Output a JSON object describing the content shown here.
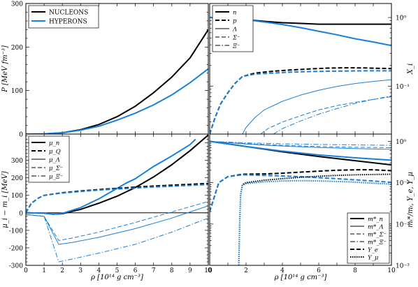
{
  "colors": {
    "black": "#000000",
    "blue": "#1a7fd8"
  },
  "chart_data": [
    {
      "panel": "top-left",
      "type": "line",
      "ylabel": "P [MeV fm⁻³]",
      "xlim": [
        0,
        10
      ],
      "ylim": [
        0,
        300
      ],
      "yticks": [
        0,
        100,
        200,
        300
      ],
      "legend_position": "top-left",
      "series": [
        {
          "name": "NUCLEONS",
          "color": "#000000",
          "style": "solid",
          "width": 2,
          "x": [
            0,
            1,
            2,
            3,
            4,
            5,
            6,
            7,
            8,
            9,
            10
          ],
          "y": [
            0,
            0.5,
            3,
            10,
            22,
            40,
            64,
            95,
            131,
            175,
            240
          ]
        },
        {
          "name": "HYPERONS",
          "color": "#1a7fd8",
          "style": "solid",
          "width": 2,
          "x": [
            0,
            1,
            2,
            3,
            4,
            5,
            6,
            7,
            8,
            9,
            10
          ],
          "y": [
            0,
            0.5,
            3,
            9,
            18,
            32,
            48,
            67,
            90,
            118,
            150
          ]
        }
      ]
    },
    {
      "panel": "top-right",
      "type": "line",
      "ylabel": "X_i",
      "yscale": "log",
      "xlim": [
        0,
        10
      ],
      "ylim": [
        0.02,
        1.6
      ],
      "yticks": [
        1,
        0.1
      ],
      "ytick_labels": [
        "10⁰",
        "10⁻¹"
      ],
      "legend_position": "top-left",
      "legend": [
        {
          "label": "n",
          "style": "solid",
          "width": 2
        },
        {
          "label": "p",
          "style": "dashed",
          "width": 2
        },
        {
          "label": "Λ",
          "style": "solid",
          "width": 1
        },
        {
          "label": "Σ⁻",
          "style": "dashed",
          "width": 1
        },
        {
          "label": "Ξ⁻",
          "style": "dashdot",
          "width": 1
        }
      ],
      "series": [
        {
          "color": "#000000",
          "style": "solid",
          "width": 2,
          "x": [
            0,
            1,
            2,
            3,
            4,
            5,
            6,
            7,
            8,
            9,
            10
          ],
          "y": [
            1.0,
            0.98,
            0.93,
            0.88,
            0.84,
            0.82,
            0.8,
            0.8,
            0.8,
            0.8,
            0.8
          ]
        },
        {
          "color": "#1a7fd8",
          "style": "solid",
          "width": 2,
          "x": [
            0,
            1,
            2,
            3,
            4,
            5,
            6,
            7,
            8,
            9,
            10
          ],
          "y": [
            1.0,
            0.98,
            0.93,
            0.86,
            0.79,
            0.71,
            0.63,
            0.56,
            0.49,
            0.44,
            0.39
          ]
        },
        {
          "color": "#000000",
          "style": "dashed",
          "width": 2,
          "x": [
            0,
            0.3,
            0.6,
            1.0,
            1.4,
            1.8,
            2.5,
            3.5,
            4.5,
            5.5,
            6.5,
            7.5,
            8.5,
            10
          ],
          "y": [
            0.02,
            0.035,
            0.055,
            0.08,
            0.11,
            0.138,
            0.155,
            0.165,
            0.172,
            0.178,
            0.183,
            0.185,
            0.184,
            0.18
          ]
        },
        {
          "color": "#1a7fd8",
          "style": "dashed",
          "width": 2,
          "x": [
            0,
            0.3,
            0.6,
            1.0,
            1.4,
            1.8,
            2.5,
            3.5,
            4.5,
            5.5,
            6.5,
            7.5,
            8.5,
            10
          ],
          "y": [
            0.02,
            0.035,
            0.055,
            0.08,
            0.11,
            0.138,
            0.15,
            0.155,
            0.16,
            0.163,
            0.165,
            0.166,
            0.167,
            0.167
          ]
        },
        {
          "color": "#1a7fd8",
          "style": "solid",
          "width": 1,
          "x": [
            1.8,
            2.0,
            2.5,
            3,
            4,
            5,
            6,
            7,
            8,
            9,
            10
          ],
          "y": [
            0.02,
            0.025,
            0.035,
            0.045,
            0.06,
            0.074,
            0.087,
            0.099,
            0.109,
            0.117,
            0.124
          ]
        },
        {
          "color": "#1a7fd8",
          "style": "dashed",
          "width": 1,
          "x": [
            2.8,
            3.2,
            4,
            5,
            6,
            7,
            8,
            9,
            10
          ],
          "y": [
            0.02,
            0.024,
            0.03,
            0.037,
            0.045,
            0.052,
            0.058,
            0.064,
            0.07
          ]
        },
        {
          "color": "#1a7fd8",
          "style": "dashdot",
          "width": 1,
          "x": [
            3.5,
            4,
            5,
            6,
            7,
            8,
            9,
            10
          ],
          "y": [
            0.02,
            0.024,
            0.031,
            0.039,
            0.047,
            0.056,
            0.064,
            0.072
          ]
        }
      ]
    },
    {
      "panel": "bottom-left",
      "type": "line",
      "xlabel": "ρ [10¹⁴ g cm⁻³]",
      "ylabel": "μ_i − m_i [MeV]",
      "xlim": [
        0,
        10
      ],
      "ylim": [
        -300,
        450
      ],
      "yticks": [
        -300,
        -200,
        -100,
        0,
        100,
        200,
        300,
        400
      ],
      "xticks": [
        0,
        1,
        2,
        3,
        4,
        5,
        6,
        7,
        8,
        9,
        10
      ],
      "legend_position": "top-left",
      "legend": [
        {
          "label": "μ_n",
          "style": "solid",
          "width": 2
        },
        {
          "label": "μ_Q",
          "style": "dashed",
          "width": 2
        },
        {
          "label": "μ_Λ",
          "style": "solid",
          "width": 1
        },
        {
          "label": "μ_Σ⁻",
          "style": "dashed",
          "width": 1
        },
        {
          "label": "μ_Ξ⁻",
          "style": "dashdot",
          "width": 1
        }
      ],
      "series": [
        {
          "color": "#000000",
          "style": "solid",
          "width": 1,
          "x": [
            0,
            10
          ],
          "y": [
            0,
            0
          ]
        },
        {
          "color": "#000000",
          "style": "solid",
          "width": 2,
          "x": [
            0,
            1,
            1.5,
            2,
            3,
            4,
            5,
            6,
            7,
            8,
            9,
            10
          ],
          "y": [
            0,
            -2,
            -8,
            -5,
            20,
            55,
            95,
            145,
            205,
            275,
            355,
            445
          ]
        },
        {
          "color": "#1a7fd8",
          "style": "solid",
          "width": 2,
          "x": [
            0,
            1,
            1.5,
            2,
            3,
            4,
            5,
            5.5,
            6,
            6.5,
            7,
            8,
            9,
            9.3
          ],
          "y": [
            0,
            -2,
            -8,
            -3,
            30,
            80,
            140,
            170,
            195,
            230,
            265,
            325,
            390,
            420
          ]
        },
        {
          "color": "#000000",
          "style": "dashed",
          "width": 2,
          "x": [
            0,
            0.3,
            0.7,
            1,
            2,
            3,
            4,
            5,
            6,
            7,
            8,
            9,
            10
          ],
          "y": [
            0,
            55,
            85,
            100,
            115,
            125,
            133,
            140,
            147,
            153,
            158,
            163,
            168
          ]
        },
        {
          "color": "#1a7fd8",
          "style": "dashed",
          "width": 2,
          "x": [
            0,
            0.3,
            0.7,
            1,
            2,
            3,
            4,
            5,
            6,
            7,
            8,
            9,
            10
          ],
          "y": [
            0,
            55,
            85,
            100,
            113,
            122,
            130,
            136,
            142,
            148,
            152,
            157,
            162
          ]
        },
        {
          "color": "#1a7fd8",
          "style": "solid",
          "width": 1,
          "x": [
            0,
            1,
            1.8,
            2.5,
            4,
            6,
            8,
            10
          ],
          "y": [
            -10,
            -20,
            -180,
            -170,
            -140,
            -90,
            -30,
            40
          ]
        },
        {
          "color": "#1a7fd8",
          "style": "dashed",
          "width": 1,
          "x": [
            0,
            1,
            1.8,
            2.5,
            4,
            6,
            8,
            10
          ],
          "y": [
            -10,
            -20,
            -158,
            -145,
            -110,
            -55,
            5,
            65
          ]
        },
        {
          "color": "#1a7fd8",
          "style": "dashdot",
          "width": 1,
          "x": [
            0,
            1,
            1.8,
            2.5,
            4,
            6,
            8,
            10
          ],
          "y": [
            -10,
            -20,
            -280,
            -265,
            -230,
            -180,
            -110,
            -30
          ]
        }
      ]
    },
    {
      "panel": "bottom-right",
      "type": "line",
      "xlabel": "ρ [10¹⁴ g cm⁻³]",
      "ylabel": "mᵢ*/mᵢ, Y_e, Y_μ",
      "yscale": "log",
      "xlim": [
        0,
        10
      ],
      "ylim": [
        0.001,
        1.5
      ],
      "yticks": [
        1,
        0.1,
        0.01,
        0.001
      ],
      "ytick_labels": [
        "10⁰",
        "10⁻¹",
        "10⁻²",
        "10⁻³"
      ],
      "xticks": [
        0,
        2,
        4,
        6,
        8,
        10
      ],
      "legend_position": "bottom-right",
      "legend": [
        {
          "label": "m*_n",
          "style": "solid",
          "width": 2
        },
        {
          "label": "m*_Λ",
          "style": "solid",
          "width": 1
        },
        {
          "label": "m*_Σ⁻",
          "style": "dashed",
          "width": 1
        },
        {
          "label": "m*_Ξ⁻",
          "style": "dashdot",
          "width": 1
        },
        {
          "label": "Y_e",
          "style": "dashed",
          "width": 2
        },
        {
          "label": "Y_μ",
          "style": "dotted",
          "width": 2
        }
      ],
      "series": [
        {
          "color": "#000000",
          "style": "solid",
          "width": 2,
          "x": [
            0,
            2,
            4,
            6,
            8,
            10
          ],
          "y": [
            1.0,
            0.75,
            0.56,
            0.43,
            0.34,
            0.27
          ]
        },
        {
          "color": "#1a7fd8",
          "style": "solid",
          "width": 2,
          "x": [
            0,
            2,
            4,
            6,
            8,
            10
          ],
          "y": [
            1.0,
            0.75,
            0.58,
            0.47,
            0.4,
            0.35
          ]
        },
        {
          "color": "#1a7fd8",
          "style": "solid",
          "width": 1,
          "x": [
            0,
            2,
            4,
            6,
            8,
            10
          ],
          "y": [
            1.0,
            0.86,
            0.77,
            0.71,
            0.67,
            0.64
          ]
        },
        {
          "color": "#1a7fd8",
          "style": "dashed",
          "width": 1,
          "x": [
            0,
            2,
            4,
            6,
            8,
            10
          ],
          "y": [
            1.0,
            0.88,
            0.8,
            0.75,
            0.72,
            0.7
          ]
        },
        {
          "color": "#1a7fd8",
          "style": "dashdot",
          "width": 1,
          "x": [
            0,
            2,
            4,
            6,
            8,
            10
          ],
          "y": [
            1.0,
            0.92,
            0.87,
            0.84,
            0.82,
            0.8
          ]
        },
        {
          "color": "#000000",
          "style": "dashed",
          "width": 2,
          "x": [
            0,
            0.5,
            1,
            1.8,
            3,
            4,
            5,
            6,
            7,
            8,
            9,
            10
          ],
          "y": [
            0.02,
            0.1,
            0.14,
            0.16,
            0.163,
            0.17,
            0.18,
            0.19,
            0.2,
            0.205,
            0.205,
            0.195
          ]
        },
        {
          "color": "#1a7fd8",
          "style": "dashed",
          "width": 2,
          "x": [
            0,
            0.5,
            1,
            1.8,
            3,
            4,
            5,
            6,
            7,
            8,
            9,
            10
          ],
          "y": [
            0.02,
            0.1,
            0.14,
            0.155,
            0.15,
            0.145,
            0.14,
            0.132,
            0.125,
            0.117,
            0.11,
            0.102
          ]
        },
        {
          "color": "#000000",
          "style": "dotted",
          "width": 2,
          "x": [
            1.6,
            1.65,
            1.7,
            1.8,
            2,
            3,
            4,
            5,
            6,
            7,
            8,
            9,
            10
          ],
          "y": [
            0.001,
            0.01,
            0.05,
            0.09,
            0.1,
            0.115,
            0.125,
            0.135,
            0.143,
            0.15,
            0.155,
            0.158,
            0.16
          ]
        },
        {
          "color": "#1a7fd8",
          "style": "dotted",
          "width": 2,
          "x": [
            1.6,
            1.65,
            1.7,
            1.8,
            2,
            3,
            4,
            5,
            6,
            7,
            8,
            9,
            10
          ],
          "y": [
            0.001,
            0.01,
            0.05,
            0.085,
            0.095,
            0.105,
            0.11,
            0.112,
            0.11,
            0.107,
            0.103,
            0.097,
            0.092
          ]
        }
      ]
    }
  ]
}
